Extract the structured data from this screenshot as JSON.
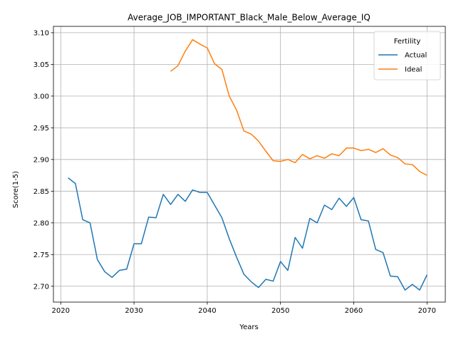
{
  "chart_data": {
    "type": "line",
    "title": "Average_JOB_IMPORTANT_Black_Male_Below_Average_IQ",
    "xlabel": "Years",
    "ylabel": "Score(1-5)",
    "xlim": [
      2019,
      2072.5
    ],
    "ylim": [
      2.675,
      3.11
    ],
    "xticks": [
      2020,
      2030,
      2040,
      2050,
      2060,
      2070
    ],
    "yticks": [
      2.7,
      2.75,
      2.8,
      2.85,
      2.9,
      2.95,
      3.0,
      3.05,
      3.1
    ],
    "xtick_labels": [
      "2020",
      "2030",
      "2040",
      "2050",
      "2060",
      "2070"
    ],
    "ytick_labels": [
      "2.70",
      "2.75",
      "2.80",
      "2.85",
      "2.90",
      "2.95",
      "3.00",
      "3.05",
      "3.10"
    ],
    "grid": true,
    "legend": {
      "title": "Fertility",
      "placement": "top-right"
    },
    "series": [
      {
        "name": "Actual",
        "color": "#1f77b4",
        "x": [
          2021,
          2022,
          2023,
          2024,
          2025,
          2026,
          2027,
          2028,
          2029,
          2030,
          2031,
          2032,
          2033,
          2034,
          2035,
          2036,
          2037,
          2038,
          2039,
          2040,
          2041,
          2042,
          2043,
          2044,
          2045,
          2046,
          2047,
          2048,
          2049,
          2050,
          2051,
          2052,
          2053,
          2054,
          2055,
          2056,
          2057,
          2058,
          2059,
          2060,
          2061,
          2062,
          2063,
          2064,
          2065,
          2066,
          2067,
          2068,
          2069,
          2070
        ],
        "values": [
          2.871,
          2.862,
          2.805,
          2.8,
          2.742,
          2.723,
          2.714,
          2.725,
          2.727,
          2.767,
          2.767,
          2.809,
          2.808,
          2.845,
          2.829,
          2.845,
          2.834,
          2.852,
          2.848,
          2.848,
          2.828,
          2.808,
          2.775,
          2.746,
          2.719,
          2.707,
          2.698,
          2.711,
          2.708,
          2.739,
          2.725,
          2.777,
          2.76,
          2.807,
          2.8,
          2.828,
          2.821,
          2.839,
          2.826,
          2.84,
          2.805,
          2.803,
          2.758,
          2.753,
          2.716,
          2.715,
          2.694,
          2.703,
          2.694,
          2.718
        ]
      },
      {
        "name": "Ideal",
        "color": "#ff7f0e",
        "x": [
          2035,
          2036,
          2037,
          2038,
          2039,
          2040,
          2041,
          2042,
          2043,
          2044,
          2045,
          2046,
          2047,
          2048,
          2049,
          2050,
          2051,
          2052,
          2053,
          2054,
          2055,
          2056,
          2057,
          2058,
          2059,
          2060,
          2061,
          2062,
          2063,
          2064,
          2065,
          2066,
          2067,
          2068,
          2069,
          2070
        ],
        "values": [
          3.039,
          3.048,
          3.071,
          3.089,
          3.082,
          3.076,
          3.051,
          3.042,
          3.0,
          2.978,
          2.945,
          2.94,
          2.929,
          2.913,
          2.898,
          2.897,
          2.9,
          2.895,
          2.908,
          2.901,
          2.906,
          2.902,
          2.909,
          2.906,
          2.918,
          2.918,
          2.914,
          2.916,
          2.911,
          2.917,
          2.907,
          2.903,
          2.893,
          2.892,
          2.881,
          2.875
        ]
      }
    ]
  }
}
